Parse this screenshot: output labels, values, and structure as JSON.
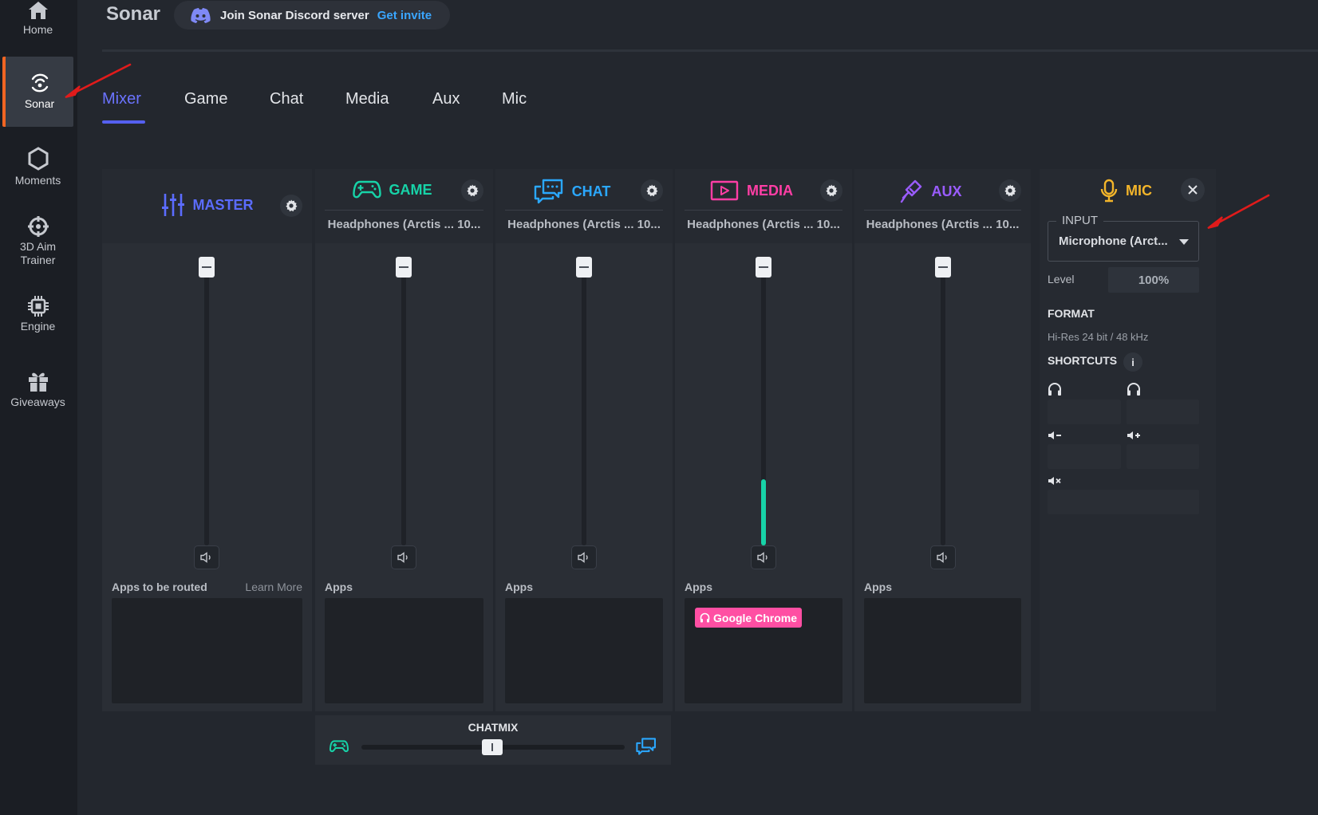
{
  "nav": {
    "items": [
      {
        "label": "Home",
        "icon": "home-icon"
      },
      {
        "label": "Sonar",
        "icon": "sonar-icon",
        "active": true
      },
      {
        "label": "Moments",
        "icon": "moments-icon"
      },
      {
        "label": "3D Aim\nTrainer",
        "icon": "crosshair-icon"
      },
      {
        "label": "Engine",
        "icon": "chip-icon"
      },
      {
        "label": "Giveaways",
        "icon": "gift-icon"
      }
    ]
  },
  "header": {
    "title": "Sonar",
    "discord_text": "Join Sonar Discord server",
    "discord_link": "Get invite"
  },
  "tabs": [
    {
      "label": "Mixer",
      "active": true
    },
    {
      "label": "Game"
    },
    {
      "label": "Chat"
    },
    {
      "label": "Media"
    },
    {
      "label": "Aux"
    },
    {
      "label": "Mic"
    }
  ],
  "channels": [
    {
      "key": "master",
      "title": "MASTER",
      "color": "#5b6cff",
      "device": "",
      "apps_label": "Apps to be routed",
      "learn_more": "Learn More",
      "level": 0,
      "apps": []
    },
    {
      "key": "game",
      "title": "GAME",
      "color": "#17d3a8",
      "device": "Headphones (Arctis ... 10...",
      "apps_label": "Apps",
      "level": 0,
      "apps": []
    },
    {
      "key": "chat",
      "title": "CHAT",
      "color": "#2ba8ff",
      "device": "Headphones (Arctis ... 10...",
      "apps_label": "Apps",
      "level": 0,
      "apps": []
    },
    {
      "key": "media",
      "title": "MEDIA",
      "color": "#ff3ea5",
      "device": "Headphones (Arctis ... 10...",
      "apps_label": "Apps",
      "level": 0.23,
      "level_color": "#17d3a8",
      "apps": [
        "Google Chrome"
      ]
    },
    {
      "key": "aux",
      "title": "AUX",
      "color": "#9a5cff",
      "device": "Headphones (Arctis ... 10...",
      "apps_label": "Apps",
      "level": 0,
      "apps": []
    }
  ],
  "chatmix": {
    "label": "CHATMIX",
    "game_color": "#17d3a8",
    "chat_color": "#2ba8ff"
  },
  "mic": {
    "title": "MIC",
    "color": "#f3b52a",
    "input_legend": "INPUT",
    "input_value": "Microphone (Arct...",
    "level_label": "Level",
    "level_value": "100%",
    "format_label": "FORMAT",
    "format_value": "Hi-Res 24 bit / 48 kHz",
    "shortcuts_label": "SHORTCUTS",
    "info": "i"
  },
  "colors": {
    "accent": "#5560f0",
    "active_nav_border": "#f26522",
    "annotation_arrow": "#e01b1b"
  }
}
